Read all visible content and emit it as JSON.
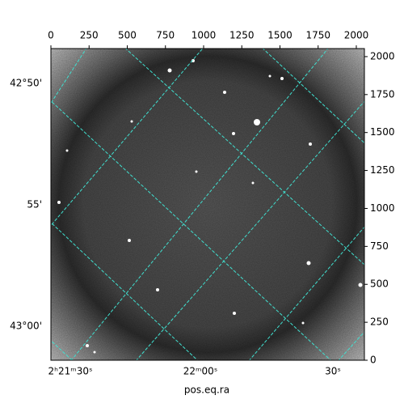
{
  "chart_data": {
    "type": "image",
    "xlabel": "pos.eq.ra",
    "xlim": [
      0,
      2053
    ],
    "xticks": [
      0,
      250,
      500,
      750,
      1000,
      1250,
      1500,
      1750,
      2000
    ],
    "ylim": [
      0,
      2053
    ],
    "yticks": [
      0,
      250,
      500,
      750,
      1000,
      1250,
      1500,
      1750,
      2000
    ],
    "ra_ticks": [
      "2ʰ21ᵐ30ˢ",
      "22ᵐ00ˢ",
      "30ˢ"
    ],
    "dec_ticks": [
      "42°50'",
      "55'",
      "43°00'"
    ],
    "grid_color": "#40e0d0"
  }
}
